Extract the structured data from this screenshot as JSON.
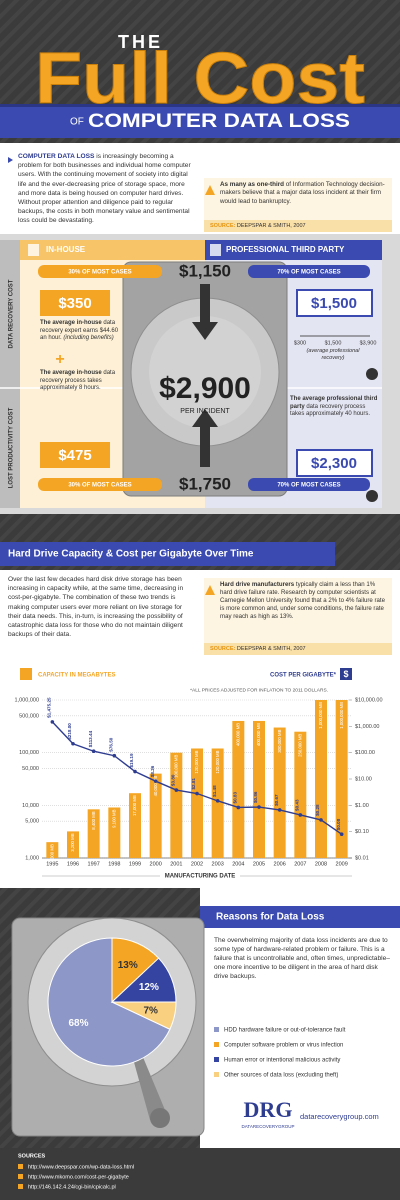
{
  "header": {
    "the": "THE",
    "title": "Full Cost",
    "of": "OF",
    "subtitle": "COMPUTER DATA LOSS"
  },
  "intro": {
    "lead": "COMPUTER DATA LOSS",
    "text": "is increasingly becoming a problem for both businesses and individual home computer users. With the continuing movement of society into digital life and the ever-decreasing price of storage space, more and more data is being housed on computer hard drives. Without proper attention and diligence paid to regular backups, the costs in both monetary value and sentimental loss could be devastating."
  },
  "quote": {
    "lead": "As many as one-third",
    "text": "of Information Technology decision-makers believe that a major data loss incident at their firm would lead to bankruptcy.",
    "source_label": "SOURCE:",
    "source": "DEEPSPAR & SMITH, 2007"
  },
  "costs": {
    "in_house": "IN-HOUSE",
    "third_party": "PROFESSIONAL THIRD PARTY",
    "recovery_label": "DATA RECOVERY COST",
    "productivity_label": "LOST PRODUCTIVITY COST",
    "top_left_share": "30% OF MOST CASES",
    "top_total": "$1,150",
    "top_right_share": "70% OF MOST CASES",
    "in_house_recovery": "$350",
    "in_house_recovery_lead": "The average in-house",
    "in_house_recovery_text": "data recovery expert earns $44.60 an hour.",
    "in_house_recovery_note": "(including benefits)",
    "plus": "+",
    "in_house_time_lead": "The average in-house",
    "in_house_time_text": "data recovery process takes approximately 8 hours.",
    "in_house_productivity": "$475",
    "total": "$2,900",
    "total_label": "PER INCIDENT",
    "pro_recovery": "$1,500",
    "pro_range": [
      "$300",
      "$1,500",
      "$3,900"
    ],
    "pro_range_note": "(average professional recovery)",
    "pro_time_lead": "The average professional third party",
    "pro_time_text": "data recovery process takes approximately 40 hours.",
    "pro_productivity": "$2,300",
    "bottom_left_share": "30% OF MOST CASES",
    "bottom_total": "$1,750",
    "bottom_right_share": "70% OF MOST CASES"
  },
  "capacity_section": {
    "title": "Hard Drive Capacity & Cost per Gigabyte Over Time",
    "text": "Over the last few decades hard disk drive storage has been increasing in capacity while, at the same time, decreasing in cost-per-gigabyte. The combination of these two trends is making computer users ever more reliant on live storage for their data needs. This, in-turn, is increasing the possibility of catastrophic data loss for those who do not maintain diligent backups of their data.",
    "quote": {
      "lead": "Hard drive manufacturers",
      "text": "typically claim a less than 1% hard drive failure rate. Research by computer scientists at Carnegie Mellon University found that a 2% to 4% failure rate is more common and, under some conditions, the failure rate may reach as high as 13%.",
      "source_label": "SOURCE:",
      "source": "DEEPSPAR & SMITH, 2007"
    }
  },
  "chart_data": [
    {
      "type": "bar",
      "note": "*ALL PRICES ADJUSTED FOR INFLATION TO 2011 DOLLARS.",
      "xlabel": "MANUFACTURING DATE",
      "categories": [
        "1995",
        "1996",
        "1997",
        "1998",
        "1999",
        "2000",
        "2001",
        "2002",
        "2003",
        "2004",
        "2005",
        "2006",
        "2007",
        "2008",
        "2009"
      ],
      "series": [
        {
          "name": "CAPACITY IN MEGABYTES",
          "color": "#f5a524",
          "values": [
            2000,
            3200,
            8400,
            9100,
            17000,
            40000,
            100000,
            120000,
            120000,
            400000,
            400000,
            300000,
            250000,
            1000000,
            1000000
          ],
          "value_labels": [
            "2,000 MB",
            "3,200 MB",
            "8,400 MB",
            "9,100 MB",
            "17,000 MB",
            "40,000 MB",
            "100,000 MB",
            "120,000 MB",
            "120,000 MB",
            "400,000 MB",
            "400,000 MB",
            "300,000 MB",
            "250,000 MB",
            "1,000,000 MB",
            "1,000,000 MB"
          ]
        },
        {
          "name": "COST PER GIGABYTE*",
          "color": "#2f3d91",
          "axis": "y2",
          "type": "line",
          "legend_icon": "$",
          "values": [
            1475.25,
            218.0,
            113.44,
            76.5,
            19.19,
            8.26,
            3.8,
            2.81,
            1.48,
            0.83,
            0.86,
            0.67,
            0.43,
            0.28,
            0.08
          ],
          "value_labels": [
            "$1,475.25",
            "$218.00",
            "$113.44",
            "$76.50",
            "$19.19",
            "$8.26",
            "$3.80",
            "$2.81",
            "$1.48",
            "$0.83",
            "$0.86",
            "$0.67",
            "$0.43",
            "$0.28",
            "$0.08"
          ]
        }
      ],
      "log_scale": true,
      "grid": true,
      "ylim": [
        1000,
        1000000
      ],
      "yticks": [
        {
          "value": 1000,
          "label": "1,000"
        },
        {
          "value": 5000,
          "label": "5,000"
        },
        {
          "value": 10000,
          "label": "10,000"
        },
        {
          "value": 50000,
          "label": "50,000"
        },
        {
          "value": 100000,
          "label": "100,000"
        },
        {
          "value": 500000,
          "label": "500,000"
        },
        {
          "value": 1000000,
          "label": "1,000,000"
        }
      ],
      "y2lim": [
        0.01,
        10000
      ],
      "y2ticks": [
        {
          "value": 0.01,
          "label": "$0.01"
        },
        {
          "value": 0.1,
          "label": "$0.10"
        },
        {
          "value": 1,
          "label": "$1.00"
        },
        {
          "value": 10,
          "label": "$10.00"
        },
        {
          "value": 100,
          "label": "$100.00"
        },
        {
          "value": 1000,
          "label": "$1,000.00"
        },
        {
          "value": 10000,
          "label": "$10,000.00"
        }
      ]
    },
    {
      "type": "pie",
      "labels": [
        "HDD hardware failure or out-of-tolerance fault",
        "Computer software problem or virus infection",
        "Human error or intentional malicious activity",
        "Other sources of data loss (excluding theft)"
      ],
      "values": [
        68,
        13,
        12,
        7
      ],
      "value_labels": [
        "68%",
        "13%",
        "12%",
        "7%"
      ],
      "colors": [
        "#8d97c8",
        "#f5a524",
        "#3444a0",
        "#f9cf80"
      ]
    }
  ],
  "reasons": {
    "title": "Reasons for Data Loss",
    "text": "The overwhelming majority of data loss incidents are due to some type of hardware-related problem or failure. This is a failure that is uncontrollable and, often times, unpredictable–one more incentive to be diligent in the area of hard disk drive backups."
  },
  "logo": {
    "mark": "DRG",
    "name": "DATARECOVERYGROUP",
    "url": "datarecoverygroup.com"
  },
  "sources": {
    "title": "SOURCES",
    "items": [
      "http://www.deepspar.com/wp-data-loss.html",
      "http://www.mkomo.com/cost-per-gigabyte",
      "http://146.142.4.24/cgi-bin/cpicalc.pl"
    ]
  }
}
